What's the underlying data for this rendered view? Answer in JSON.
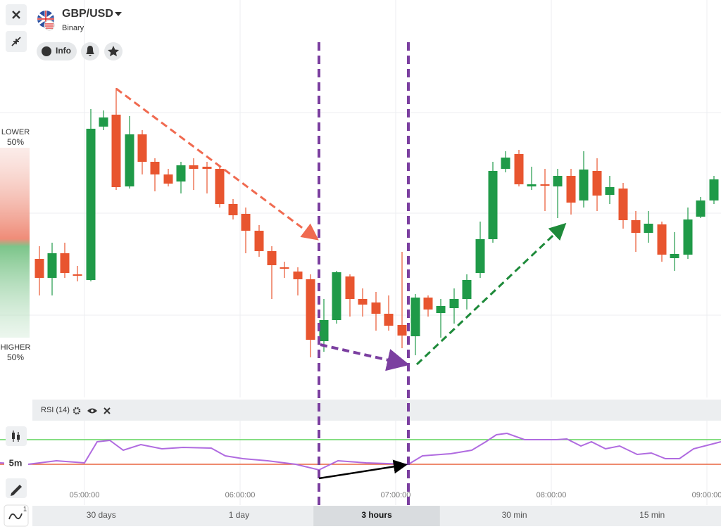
{
  "header": {
    "title": "GBP/USD",
    "subtitle": "Binary",
    "info_button": "Info"
  },
  "sentiment": {
    "lower_label": "LOWER",
    "lower_value": "50%",
    "higher_label": "HIGHER",
    "higher_value": "50%"
  },
  "indicator": {
    "name": "RSI (14)"
  },
  "tools": {
    "timeframe": "5m",
    "indicator_count": "1"
  },
  "time_axis": [
    "05:00:00",
    "06:00:00",
    "07:00:00",
    "08:00:00",
    "09:00:00"
  ],
  "periods": {
    "items": [
      "30 days",
      "1 day",
      "3 hours",
      "30 min",
      "15 min"
    ],
    "selected": "3 hours"
  }
}
